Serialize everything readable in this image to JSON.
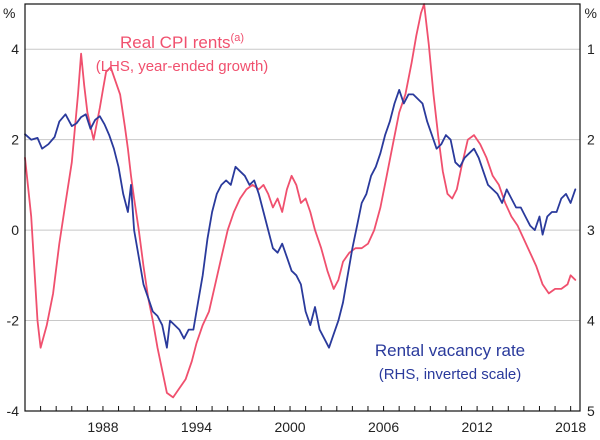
{
  "chart_data": {
    "type": "line",
    "axes": {
      "left": {
        "unit": "%",
        "ylim": [
          -4,
          5
        ],
        "ticks": [
          "4",
          "2",
          "0",
          "-2",
          "-4"
        ]
      },
      "right": {
        "unit": "%",
        "ylim": [
          5,
          0.5
        ],
        "inverted": true,
        "ticks": [
          "1",
          "2",
          "3",
          "4",
          "5"
        ]
      },
      "x": {
        "xlim": [
          1983.0,
          2018.6
        ],
        "ticks": [
          "1988",
          "1994",
          "2000",
          "2006",
          "2012",
          "2018"
        ]
      }
    },
    "grid": {
      "horizontal": true,
      "vertical": false
    },
    "series": [
      {
        "name": "Real CPI rents",
        "superscript": "(a)",
        "note": "(LHS, year-ended growth)",
        "color": "#f0506e",
        "axis": "left",
        "points": [
          [
            1983.0,
            1.6
          ],
          [
            1983.4,
            0.3
          ],
          [
            1983.8,
            -2.0
          ],
          [
            1984.0,
            -2.6
          ],
          [
            1984.4,
            -2.1
          ],
          [
            1984.8,
            -1.4
          ],
          [
            1985.2,
            -0.3
          ],
          [
            1985.6,
            0.6
          ],
          [
            1986.0,
            1.5
          ],
          [
            1986.4,
            3.0
          ],
          [
            1986.6,
            3.9
          ],
          [
            1986.8,
            3.2
          ],
          [
            1987.0,
            2.6
          ],
          [
            1987.4,
            2.0
          ],
          [
            1987.8,
            2.7
          ],
          [
            1988.0,
            3.1
          ],
          [
            1988.2,
            3.5
          ],
          [
            1988.5,
            3.6
          ],
          [
            1988.8,
            3.3
          ],
          [
            1989.1,
            3.0
          ],
          [
            1989.4,
            2.3
          ],
          [
            1989.6,
            1.8
          ],
          [
            1989.8,
            1.2
          ],
          [
            1990.0,
            0.7
          ],
          [
            1990.3,
            0.0
          ],
          [
            1990.6,
            -0.8
          ],
          [
            1990.9,
            -1.5
          ],
          [
            1991.2,
            -2.0
          ],
          [
            1991.5,
            -2.6
          ],
          [
            1991.8,
            -3.1
          ],
          [
            1992.1,
            -3.6
          ],
          [
            1992.5,
            -3.7
          ],
          [
            1992.9,
            -3.5
          ],
          [
            1993.3,
            -3.3
          ],
          [
            1993.7,
            -2.9
          ],
          [
            1994.0,
            -2.5
          ],
          [
            1994.4,
            -2.1
          ],
          [
            1994.8,
            -1.8
          ],
          [
            1995.2,
            -1.2
          ],
          [
            1995.6,
            -0.6
          ],
          [
            1996.0,
            0.0
          ],
          [
            1996.4,
            0.4
          ],
          [
            1996.8,
            0.7
          ],
          [
            1997.2,
            0.9
          ],
          [
            1997.6,
            1.0
          ],
          [
            1998.0,
            0.9
          ],
          [
            1998.3,
            1.0
          ],
          [
            1998.6,
            0.8
          ],
          [
            1998.9,
            0.5
          ],
          [
            1999.2,
            0.7
          ],
          [
            1999.5,
            0.4
          ],
          [
            1999.8,
            0.9
          ],
          [
            2000.1,
            1.2
          ],
          [
            2000.4,
            1.0
          ],
          [
            2000.7,
            0.6
          ],
          [
            2001.0,
            0.7
          ],
          [
            2001.3,
            0.4
          ],
          [
            2001.6,
            0.0
          ],
          [
            2002.0,
            -0.4
          ],
          [
            2002.4,
            -0.9
          ],
          [
            2002.8,
            -1.3
          ],
          [
            2003.1,
            -1.1
          ],
          [
            2003.4,
            -0.7
          ],
          [
            2003.8,
            -0.5
          ],
          [
            2004.2,
            -0.4
          ],
          [
            2004.6,
            -0.4
          ],
          [
            2005.0,
            -0.3
          ],
          [
            2005.4,
            0.0
          ],
          [
            2005.8,
            0.5
          ],
          [
            2006.2,
            1.2
          ],
          [
            2006.6,
            1.9
          ],
          [
            2007.0,
            2.6
          ],
          [
            2007.4,
            3.0
          ],
          [
            2007.8,
            3.7
          ],
          [
            2008.1,
            4.3
          ],
          [
            2008.4,
            4.8
          ],
          [
            2008.6,
            5.0
          ],
          [
            2008.9,
            4.1
          ],
          [
            2009.2,
            3.0
          ],
          [
            2009.5,
            2.1
          ],
          [
            2009.8,
            1.3
          ],
          [
            2010.1,
            0.8
          ],
          [
            2010.4,
            0.7
          ],
          [
            2010.7,
            0.9
          ],
          [
            2011.0,
            1.4
          ],
          [
            2011.4,
            2.0
          ],
          [
            2011.8,
            2.1
          ],
          [
            2012.2,
            1.9
          ],
          [
            2012.6,
            1.6
          ],
          [
            2013.0,
            1.2
          ],
          [
            2013.4,
            1.0
          ],
          [
            2013.8,
            0.6
          ],
          [
            2014.2,
            0.3
          ],
          [
            2014.6,
            0.1
          ],
          [
            2015.0,
            -0.2
          ],
          [
            2015.4,
            -0.5
          ],
          [
            2015.8,
            -0.8
          ],
          [
            2016.2,
            -1.2
          ],
          [
            2016.6,
            -1.4
          ],
          [
            2017.0,
            -1.3
          ],
          [
            2017.4,
            -1.3
          ],
          [
            2017.8,
            -1.2
          ],
          [
            2018.0,
            -1.0
          ],
          [
            2018.3,
            -1.1
          ]
        ]
      },
      {
        "name": "Rental vacancy rate",
        "note": "(RHS, inverted scale)",
        "color": "#2a3a9c",
        "axis": "right",
        "points": [
          [
            1983.0,
            1.94
          ],
          [
            1983.4,
            2.0
          ],
          [
            1983.8,
            1.98
          ],
          [
            1984.1,
            2.1
          ],
          [
            1984.5,
            2.05
          ],
          [
            1984.9,
            1.97
          ],
          [
            1985.2,
            1.8
          ],
          [
            1985.6,
            1.72
          ],
          [
            1986.0,
            1.85
          ],
          [
            1986.3,
            1.82
          ],
          [
            1986.6,
            1.75
          ],
          [
            1986.9,
            1.72
          ],
          [
            1987.2,
            1.88
          ],
          [
            1987.5,
            1.78
          ],
          [
            1987.8,
            1.74
          ],
          [
            1988.1,
            1.83
          ],
          [
            1988.4,
            1.95
          ],
          [
            1988.7,
            2.1
          ],
          [
            1989.0,
            2.3
          ],
          [
            1989.3,
            2.6
          ],
          [
            1989.6,
            2.8
          ],
          [
            1989.8,
            2.5
          ],
          [
            1990.0,
            3.0
          ],
          [
            1990.3,
            3.3
          ],
          [
            1990.6,
            3.6
          ],
          [
            1990.9,
            3.75
          ],
          [
            1991.2,
            3.9
          ],
          [
            1991.5,
            3.95
          ],
          [
            1991.8,
            4.05
          ],
          [
            1992.1,
            4.3
          ],
          [
            1992.3,
            4.0
          ],
          [
            1992.6,
            4.05
          ],
          [
            1992.9,
            4.1
          ],
          [
            1993.2,
            4.2
          ],
          [
            1993.5,
            4.1
          ],
          [
            1993.8,
            4.1
          ],
          [
            1994.1,
            3.8
          ],
          [
            1994.4,
            3.5
          ],
          [
            1994.7,
            3.1
          ],
          [
            1995.0,
            2.8
          ],
          [
            1995.3,
            2.6
          ],
          [
            1995.6,
            2.5
          ],
          [
            1995.9,
            2.45
          ],
          [
            1996.2,
            2.5
          ],
          [
            1996.5,
            2.3
          ],
          [
            1996.8,
            2.35
          ],
          [
            1997.1,
            2.4
          ],
          [
            1997.4,
            2.5
          ],
          [
            1997.7,
            2.45
          ],
          [
            1998.0,
            2.6
          ],
          [
            1998.3,
            2.8
          ],
          [
            1998.6,
            3.0
          ],
          [
            1998.9,
            3.2
          ],
          [
            1999.2,
            3.25
          ],
          [
            1999.5,
            3.15
          ],
          [
            1999.8,
            3.3
          ],
          [
            2000.1,
            3.45
          ],
          [
            2000.4,
            3.5
          ],
          [
            2000.7,
            3.6
          ],
          [
            2001.0,
            3.9
          ],
          [
            2001.3,
            4.05
          ],
          [
            2001.6,
            3.85
          ],
          [
            2001.9,
            4.1
          ],
          [
            2002.2,
            4.2
          ],
          [
            2002.5,
            4.3
          ],
          [
            2002.8,
            4.15
          ],
          [
            2003.1,
            4.0
          ],
          [
            2003.4,
            3.8
          ],
          [
            2003.7,
            3.5
          ],
          [
            2004.0,
            3.2
          ],
          [
            2004.3,
            2.95
          ],
          [
            2004.6,
            2.7
          ],
          [
            2004.9,
            2.6
          ],
          [
            2005.2,
            2.4
          ],
          [
            2005.5,
            2.3
          ],
          [
            2005.8,
            2.15
          ],
          [
            2006.1,
            1.95
          ],
          [
            2006.4,
            1.8
          ],
          [
            2006.7,
            1.6
          ],
          [
            2007.0,
            1.45
          ],
          [
            2007.3,
            1.6
          ],
          [
            2007.6,
            1.5
          ],
          [
            2007.9,
            1.5
          ],
          [
            2008.2,
            1.55
          ],
          [
            2008.5,
            1.6
          ],
          [
            2008.8,
            1.8
          ],
          [
            2009.1,
            1.95
          ],
          [
            2009.4,
            2.1
          ],
          [
            2009.7,
            2.05
          ],
          [
            2010.0,
            1.95
          ],
          [
            2010.3,
            2.0
          ],
          [
            2010.6,
            2.25
          ],
          [
            2010.9,
            2.3
          ],
          [
            2011.2,
            2.2
          ],
          [
            2011.5,
            2.15
          ],
          [
            2011.8,
            2.1
          ],
          [
            2012.1,
            2.2
          ],
          [
            2012.4,
            2.35
          ],
          [
            2012.7,
            2.5
          ],
          [
            2013.0,
            2.55
          ],
          [
            2013.3,
            2.6
          ],
          [
            2013.6,
            2.7
          ],
          [
            2013.9,
            2.55
          ],
          [
            2014.2,
            2.65
          ],
          [
            2014.5,
            2.75
          ],
          [
            2014.8,
            2.75
          ],
          [
            2015.1,
            2.85
          ],
          [
            2015.4,
            2.95
          ],
          [
            2015.7,
            3.0
          ],
          [
            2016.0,
            2.85
          ],
          [
            2016.2,
            3.05
          ],
          [
            2016.5,
            2.85
          ],
          [
            2016.8,
            2.8
          ],
          [
            2017.1,
            2.8
          ],
          [
            2017.4,
            2.65
          ],
          [
            2017.7,
            2.6
          ],
          [
            2018.0,
            2.7
          ],
          [
            2018.3,
            2.55
          ]
        ]
      }
    ]
  }
}
